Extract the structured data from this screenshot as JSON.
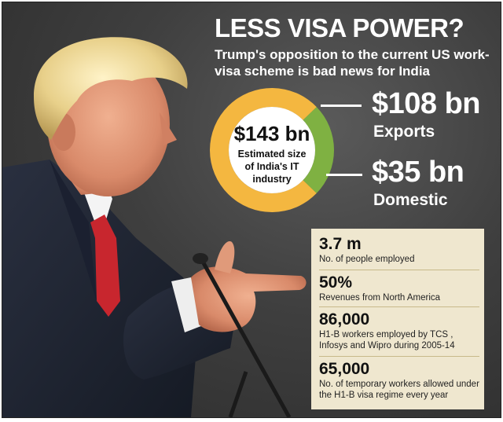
{
  "header": {
    "title": "LESS VISA POWER?",
    "subtitle": "Trump's opposition to the current US work-visa scheme is bad news for India"
  },
  "chart_data": {
    "type": "pie",
    "title": "LESS VISA POWER?",
    "total": {
      "value_label": "$143 bn",
      "label": "Estimated size of India's IT industry",
      "value": 143
    },
    "slices": [
      {
        "label": "Exports",
        "value": 108,
        "value_label": "$108 bn",
        "color": "#f4b740"
      },
      {
        "label": "Domestic",
        "value": 35,
        "value_label": "$35 bn",
        "color": "#7fb142"
      }
    ]
  },
  "stats": [
    {
      "value": "3.7 m",
      "description": "No. of people employed"
    },
    {
      "value": "50%",
      "description": "Revenues from North America"
    },
    {
      "value": "86,000",
      "description": "H1-B workers employed by TCS , Infosys and Wipro during 2005-14"
    },
    {
      "value": "65,000",
      "description": "No. of temporary workers allowed under the H1-B visa regime every year"
    }
  ],
  "colors": {
    "exports": "#f4b740",
    "domestic": "#7fb142",
    "panel": "#efe7cf",
    "background": "#3f3f3f"
  },
  "image": {
    "subject": "speaker-illustration"
  }
}
